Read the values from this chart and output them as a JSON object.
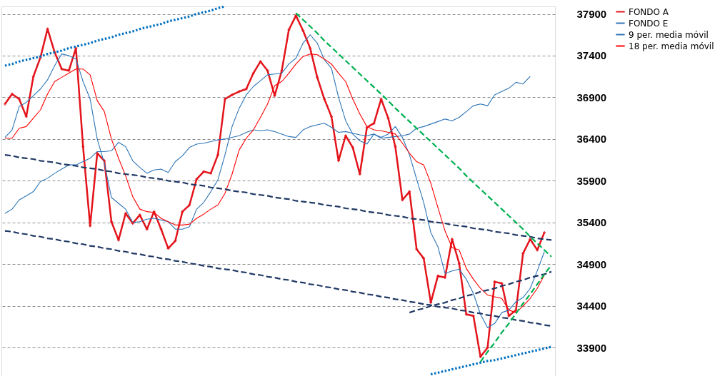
{
  "chart_data": {
    "type": "line",
    "categories": [
      null,
      null,
      null,
      null,
      null,
      null,
      null,
      null,
      null,
      null,
      null,
      null,
      null,
      null,
      null,
      null,
      null,
      null,
      null,
      null,
      null,
      null,
      null,
      null,
      null,
      null,
      null,
      null,
      null,
      null,
      null,
      null,
      null,
      null,
      null,
      null,
      null,
      null,
      null,
      null,
      null,
      null,
      null,
      null,
      null,
      null,
      null,
      null,
      null,
      null,
      null,
      null,
      null,
      null,
      null,
      null,
      null,
      null,
      null,
      null,
      null,
      null,
      null,
      null,
      null,
      null,
      null,
      null,
      null,
      null,
      null,
      null,
      null,
      null,
      null,
      null,
      null,
      null
    ],
    "ylim": [
      33560,
      37990
    ],
    "yticks": [
      33900,
      34400,
      34900,
      35400,
      35900,
      36400,
      36900,
      37400,
      37900
    ],
    "tick_labels": "y",
    "grid": "y",
    "legend": "top right",
    "series": [
      {
        "name": "FONDO A",
        "color": "#e3141b",
        "marker": "cross",
        "values": [
          36820,
          36940,
          36880,
          36670,
          37150,
          37380,
          37720,
          37440,
          37240,
          37220,
          37490,
          36310,
          35360,
          36230,
          36140,
          35410,
          35190,
          35510,
          35390,
          35490,
          35320,
          35530,
          35320,
          35090,
          35180,
          35530,
          35610,
          35920,
          36010,
          35990,
          36210,
          36880,
          36930,
          36970,
          37000,
          37190,
          37330,
          37220,
          36920,
          37220,
          37710,
          37880,
          37700,
          37490,
          37140,
          36880,
          36670,
          36140,
          36440,
          36300,
          35980,
          36540,
          36590,
          36880,
          36650,
          36310,
          35670,
          35770,
          35080,
          34970,
          34440,
          34760,
          34740,
          35200,
          34910,
          34300,
          34280,
          33790,
          33900,
          34690,
          34670,
          34280,
          34350,
          35030,
          35200,
          35070,
          35280,
          null
        ]
      },
      {
        "name": "FONDO E",
        "color": "#2e75b6",
        "values": [
          35510,
          35560,
          35670,
          35720,
          35770,
          35890,
          35930,
          35990,
          36040,
          36090,
          36090,
          36130,
          36170,
          36250,
          36250,
          36260,
          36360,
          36310,
          36140,
          36060,
          35990,
          36030,
          36040,
          36000,
          36130,
          36200,
          36300,
          36340,
          36350,
          36370,
          36390,
          36400,
          36420,
          36440,
          36480,
          36510,
          36500,
          36510,
          36490,
          36460,
          36430,
          36420,
          36510,
          36550,
          36570,
          36590,
          36540,
          36480,
          36490,
          36470,
          36450,
          36440,
          36460,
          36410,
          36420,
          36430,
          36440,
          36460,
          36530,
          36550,
          36580,
          36610,
          36640,
          36620,
          36660,
          36730,
          36800,
          36820,
          36800,
          36930,
          36970,
          37010,
          37080,
          37060,
          37150,
          null,
          null,
          null
        ]
      },
      {
        "name": "9 per. media móvil",
        "color": "#2e75b6",
        "values": [
          36420,
          36510,
          36790,
          36840,
          36920,
          37000,
          37110,
          37280,
          37420,
          37400,
          37360,
          37090,
          36880,
          36400,
          36110,
          35700,
          35630,
          35560,
          35400,
          35410,
          35440,
          35450,
          35430,
          35410,
          35320,
          35320,
          35350,
          35560,
          35640,
          35770,
          35910,
          36210,
          36550,
          36770,
          36930,
          37030,
          37100,
          37170,
          37180,
          37190,
          37300,
          37370,
          37550,
          37650,
          37550,
          37350,
          37250,
          36900,
          36620,
          36460,
          36380,
          36340,
          36460,
          36420,
          36460,
          36550,
          36420,
          36210,
          35920,
          35640,
          35280,
          35110,
          34790,
          34820,
          34840,
          34720,
          34550,
          34300,
          34140,
          34190,
          34320,
          34350,
          34450,
          34500,
          34610,
          34820,
          35050,
          null
        ]
      },
      {
        "name": "18 per. media móvil",
        "color": "#ff0000",
        "values": [
          36410,
          36410,
          36530,
          36550,
          36650,
          36750,
          36940,
          37090,
          37140,
          37190,
          37240,
          37240,
          37170,
          36860,
          36730,
          36400,
          36170,
          35960,
          35710,
          35560,
          35530,
          35520,
          35450,
          35410,
          35370,
          35370,
          35380,
          35450,
          35500,
          35560,
          35610,
          35750,
          35980,
          36270,
          36410,
          36510,
          36660,
          36820,
          37040,
          37090,
          37190,
          37300,
          37390,
          37420,
          37410,
          37360,
          37300,
          37190,
          37090,
          36880,
          36700,
          36550,
          36510,
          36500,
          36480,
          36460,
          36350,
          36230,
          36130,
          36090,
          35870,
          35580,
          35300,
          35100,
          35070,
          34850,
          34720,
          34610,
          34530,
          34510,
          34490,
          34350,
          34320,
          34400,
          34490,
          34610,
          34770,
          null
        ]
      },
      {
        "type": "line",
        "color": "#0070c0",
        "line_style": "dotted",
        "values": [
          37280,
          37300,
          37330,
          37350,
          37370,
          37390,
          37420,
          37440,
          37460,
          37490,
          37510,
          37530,
          37550,
          37580,
          37600,
          37620,
          37650,
          37670,
          37690,
          37720,
          37740,
          37760,
          37780,
          37810,
          37830,
          37850,
          37870,
          37900,
          37920,
          37940,
          37970,
          37990,
          null,
          null,
          null,
          null,
          null,
          null,
          null,
          null,
          null,
          null,
          null,
          null,
          null,
          null,
          null,
          null,
          null,
          null,
          null,
          null,
          null,
          null,
          null,
          null,
          null,
          null,
          null,
          null,
          null,
          null,
          null,
          null,
          null,
          null,
          null,
          null,
          null,
          null,
          null,
          null,
          null,
          null,
          null,
          null,
          null,
          null
        ]
      },
      {
        "type": "line",
        "color": "#1f3864",
        "line_style": "dashed",
        "values": [
          36210,
          36200,
          36180,
          36170,
          36160,
          36140,
          36130,
          36120,
          36100,
          36090,
          36080,
          36060,
          36050,
          36040,
          36020,
          36010,
          35990,
          35980,
          35970,
          35960,
          35940,
          35930,
          35920,
          35900,
          35890,
          35880,
          35860,
          35850,
          35840,
          35820,
          35810,
          35800,
          35780,
          35770,
          35760,
          35740,
          35730,
          35720,
          35700,
          35690,
          35680,
          35660,
          35650,
          35640,
          35630,
          35610,
          35600,
          35590,
          35570,
          35560,
          35550,
          35530,
          35520,
          35510,
          35490,
          35480,
          35470,
          35450,
          35440,
          35430,
          35410,
          35400,
          35390,
          35370,
          35360,
          35350,
          35330,
          35320,
          35310,
          35290,
          35280,
          35270,
          35250,
          35240,
          35230,
          35210,
          35200,
          35190
        ]
      },
      {
        "type": "line",
        "color": "#1f3864",
        "line_style": "dashed",
        "values": [
          35300,
          35290,
          35270,
          35260,
          35240,
          35230,
          35210,
          35200,
          35180,
          35170,
          35150,
          35140,
          35120,
          35110,
          35090,
          35080,
          35060,
          35050,
          35030,
          35020,
          35000,
          34990,
          34970,
          34960,
          34940,
          34930,
          34910,
          34900,
          34880,
          34870,
          34850,
          34840,
          34830,
          34810,
          34800,
          34780,
          34770,
          34750,
          34740,
          34720,
          34710,
          34690,
          34680,
          34660,
          34650,
          34630,
          34620,
          34600,
          34590,
          34570,
          34560,
          34540,
          34530,
          34510,
          34500,
          34480,
          34470,
          34450,
          34440,
          34420,
          34410,
          34390,
          34380,
          34370,
          34350,
          34340,
          34320,
          34310,
          34290,
          34280,
          34260,
          34250,
          34230,
          34220,
          34200,
          34190,
          34170,
          34160
        ]
      },
      {
        "type": "line",
        "color": "#1f3864",
        "line_style": "dashed",
        "values": [
          null,
          null,
          null,
          null,
          null,
          null,
          null,
          null,
          null,
          null,
          null,
          null,
          null,
          null,
          null,
          null,
          null,
          null,
          null,
          null,
          null,
          null,
          null,
          null,
          null,
          null,
          null,
          null,
          null,
          null,
          null,
          null,
          null,
          null,
          null,
          null,
          null,
          null,
          null,
          null,
          null,
          null,
          null,
          null,
          null,
          null,
          null,
          null,
          null,
          null,
          null,
          null,
          null,
          null,
          null,
          null,
          null,
          34320,
          34350,
          34370,
          34400,
          34420,
          34440,
          34470,
          34490,
          34520,
          34540,
          34570,
          34590,
          34610,
          34640,
          34660,
          34690,
          34710,
          34740,
          34760,
          34780,
          34810
        ]
      },
      {
        "type": "line",
        "color": "#00b050",
        "line_style": "dashed",
        "values": [
          null,
          null,
          null,
          null,
          null,
          null,
          null,
          null,
          null,
          null,
          null,
          null,
          null,
          null,
          null,
          null,
          null,
          null,
          null,
          null,
          null,
          null,
          null,
          null,
          null,
          null,
          null,
          null,
          null,
          null,
          null,
          null,
          null,
          null,
          null,
          null,
          null,
          null,
          null,
          null,
          null,
          37910,
          37830,
          37750,
          37670,
          37580,
          37500,
          37420,
          37340,
          37260,
          37180,
          37100,
          37020,
          36940,
          36860,
          36770,
          36690,
          36610,
          36530,
          36450,
          36370,
          36290,
          36210,
          36130,
          36050,
          35960,
          35880,
          35800,
          35720,
          35640,
          35560,
          35480,
          35400,
          35320,
          35230,
          35150,
          35070,
          34990
        ]
      },
      {
        "type": "line",
        "color": "#00b050",
        "line_style": "dashed",
        "values": [
          null,
          null,
          null,
          null,
          null,
          null,
          null,
          null,
          null,
          null,
          null,
          null,
          null,
          null,
          null,
          null,
          null,
          null,
          null,
          null,
          null,
          null,
          null,
          null,
          null,
          null,
          null,
          null,
          null,
          null,
          null,
          null,
          null,
          null,
          null,
          null,
          null,
          null,
          null,
          null,
          null,
          null,
          null,
          null,
          null,
          null,
          null,
          null,
          null,
          null,
          null,
          null,
          null,
          null,
          null,
          null,
          null,
          null,
          null,
          null,
          null,
          null,
          null,
          null,
          null,
          null,
          null,
          33730,
          33850,
          33960,
          34080,
          34190,
          34310,
          34430,
          34540,
          34660,
          34780,
          34890
        ]
      },
      {
        "type": "line",
        "color": "#0070c0",
        "line_style": "dotted",
        "values": [
          null,
          null,
          null,
          null,
          null,
          null,
          null,
          null,
          null,
          null,
          null,
          null,
          null,
          null,
          null,
          null,
          null,
          null,
          null,
          null,
          null,
          null,
          null,
          null,
          null,
          null,
          null,
          null,
          null,
          null,
          null,
          null,
          null,
          null,
          null,
          null,
          null,
          null,
          null,
          null,
          null,
          null,
          null,
          null,
          null,
          null,
          null,
          null,
          null,
          null,
          null,
          null,
          null,
          null,
          null,
          null,
          null,
          null,
          null,
          null,
          33580,
          33600,
          33620,
          33640,
          33660,
          33680,
          33700,
          33720,
          33740,
          33750,
          33770,
          33790,
          33810,
          33830,
          33850,
          33870,
          33890,
          33910
        ]
      }
    ]
  }
}
